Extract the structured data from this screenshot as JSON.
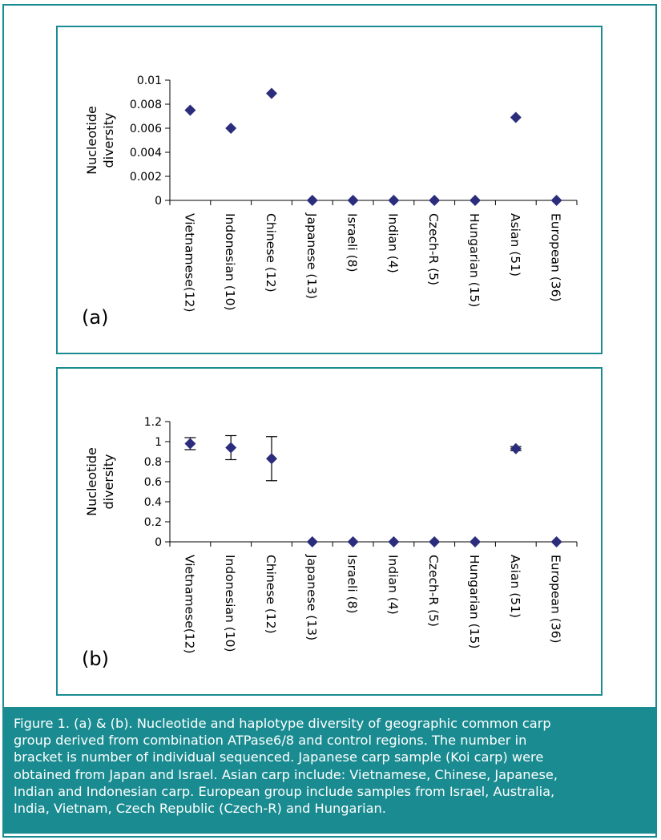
{
  "chart_data": [
    {
      "type": "scatter",
      "panel_label": "(a)",
      "ylabel_lines": [
        "Nucleotide",
        "diversity"
      ],
      "categories": [
        "Vietnamese(12)",
        "Indonesian (10)",
        "Chinese (12)",
        "Japanese (13)",
        "Israeli (8)",
        "Indian (4)",
        "Czech-R (5)",
        "Hungarian (15)",
        "Asian (51)",
        "European (36)"
      ],
      "values": [
        0.0075,
        0.006,
        0.0089,
        0,
        0,
        0,
        0,
        0,
        0.0069,
        0
      ],
      "yticks": [
        "0",
        "0.002",
        "0.004",
        "0.006",
        "0.008",
        "0.01"
      ],
      "ylim": [
        0,
        0.01
      ],
      "marker_color": "#2b2d7c"
    },
    {
      "type": "scatter",
      "panel_label": "(b)",
      "ylabel_lines": [
        "Nucleotide",
        "diversity"
      ],
      "categories": [
        "Vietnamese(12)",
        "Indonesian (10)",
        "Chinese (12)",
        "Japanese (13)",
        "Israeli (8)",
        "Indian (4)",
        "Czech-R (5)",
        "Hungarian (15)",
        "Asian (51)",
        "European (36)"
      ],
      "values": [
        0.98,
        0.94,
        0.83,
        0,
        0,
        0,
        0,
        0,
        0.93,
        0
      ],
      "error": [
        0.06,
        0.12,
        0.22,
        0,
        0,
        0,
        0,
        0,
        0.02,
        0
      ],
      "yticks": [
        "0",
        "0.2",
        "0.4",
        "0.6",
        "0.8",
        "1",
        "1.2"
      ],
      "ylim": [
        0,
        1.2
      ],
      "marker_color": "#2b2d7c"
    }
  ],
  "caption": {
    "lines": [
      "Figure 1. (a) & (b). Nucleotide and haplotype diversity of geographic common carp",
      "group derived from combination ATPase6/8 and control regions. The number in",
      "bracket is number of individual sequenced. Japanese carp sample (Koi carp) were",
      "obtained from Japan and Israel. Asian carp include: Vietnamese, Chinese, Japanese,",
      "Indian and Indonesian carp. European group include samples from Israel, Australia,",
      "India, Vietnam, Czech Republic (Czech-R) and Hungarian."
    ]
  }
}
